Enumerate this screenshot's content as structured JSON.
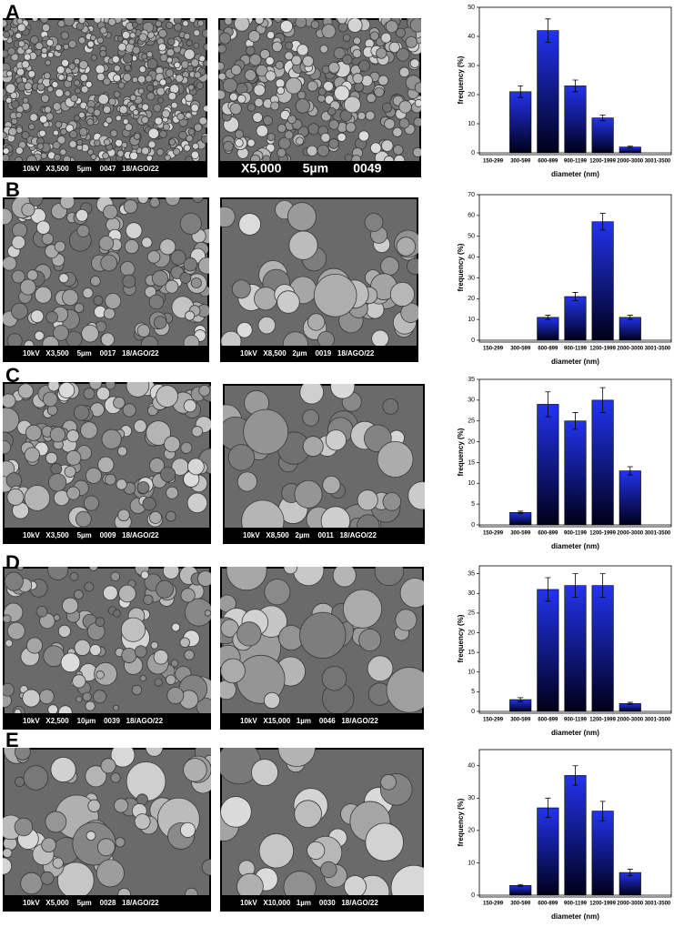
{
  "panels": [
    {
      "letter": "A",
      "captions": [
        "10kV   X3,500    5µm    0047   18/AGO/22",
        "X5,000      5µm       0049"
      ]
    },
    {
      "letter": "B",
      "captions": [
        "10kV   X3,500    5µm    0017   18/AGO/22",
        "10kV   X8,500   2µm    0019   18/AGO/22"
      ]
    },
    {
      "letter": "C",
      "captions": [
        "10kV   X3,500    5µm    0009   18/AGO/22",
        "10kV   X8,500   2µm    0011   18/AGO/22"
      ]
    },
    {
      "letter": "D",
      "captions": [
        "10kV   X2,500    10µm    0039   18/AGO/22",
        "10kV   X15,000   1µm    0046   18/AGO/22"
      ]
    },
    {
      "letter": "E",
      "captions": [
        "10kV   X5,000    5µm    0028   18/AGO/22",
        "10kV   X10,000   1µm    0030   18/AGO/22"
      ]
    }
  ],
  "chart_data": [
    {
      "type": "bar",
      "xlabel": "diameter (nm)",
      "ylabel": "frequency (%)",
      "color": "#2233ee",
      "categories": [
        "150-299",
        "300-599",
        "600-899",
        "900-1199",
        "1200-1999",
        "2000-3000",
        "3001-3500"
      ],
      "values": [
        null,
        21,
        42,
        23,
        12,
        2,
        null
      ],
      "errors": [
        null,
        2,
        4,
        2,
        1,
        0.3,
        null
      ],
      "ylim": [
        0,
        50
      ],
      "yticks": [
        0,
        10,
        20,
        30,
        40,
        50
      ]
    },
    {
      "type": "bar",
      "xlabel": "diameter (nm)",
      "ylabel": "frequency (%)",
      "color": "#2233ee",
      "categories": [
        "150-299",
        "300-599",
        "600-899",
        "900-1199",
        "1200-1999",
        "2000-3000",
        "3001-3500"
      ],
      "values": [
        null,
        null,
        11,
        21,
        57,
        11,
        null
      ],
      "errors": [
        null,
        null,
        1,
        2,
        4,
        1,
        null
      ],
      "ylim": [
        0,
        70
      ],
      "yticks": [
        0,
        10,
        20,
        30,
        40,
        50,
        60,
        70
      ]
    },
    {
      "type": "bar",
      "xlabel": "diameter (nm)",
      "ylabel": "frequency (%)",
      "color": "#2233ee",
      "categories": [
        "150-299",
        "300-599",
        "600-899",
        "900-1199",
        "1200-1999",
        "2000-3000",
        "3001-3500"
      ],
      "values": [
        null,
        3,
        29,
        25,
        30,
        13,
        null
      ],
      "errors": [
        null,
        0.3,
        3,
        2,
        3,
        1,
        null
      ],
      "ylim": [
        0,
        35
      ],
      "yticks": [
        0,
        5,
        10,
        15,
        20,
        25,
        30,
        35
      ]
    },
    {
      "type": "bar",
      "xlabel": "diameter (nm)",
      "ylabel": "frequency (%)",
      "color": "#2233ee",
      "categories": [
        "150-299",
        "300-599",
        "600-899",
        "900-1199",
        "1200-1999",
        "2000-3000",
        "3001-3500"
      ],
      "values": [
        null,
        3,
        31,
        32,
        32,
        2,
        null
      ],
      "errors": [
        null,
        0.5,
        3,
        3,
        3,
        0.3,
        null
      ],
      "ylim": [
        0,
        37
      ],
      "yticks": [
        0,
        5,
        10,
        15,
        20,
        25,
        30,
        35
      ]
    },
    {
      "type": "bar",
      "xlabel": "diameter (nm)",
      "ylabel": "frequency (%)",
      "color": "#2233ee",
      "categories": [
        "150-299",
        "300-599",
        "600-899",
        "900-1199",
        "1200-1999",
        "2000-3000",
        "3001-3500"
      ],
      "values": [
        null,
        3,
        27,
        37,
        26,
        7,
        null
      ],
      "errors": [
        null,
        0.3,
        3,
        3,
        3,
        1,
        null
      ],
      "ylim": [
        0,
        45
      ],
      "yticks": [
        0,
        10,
        20,
        30,
        40
      ]
    }
  ]
}
